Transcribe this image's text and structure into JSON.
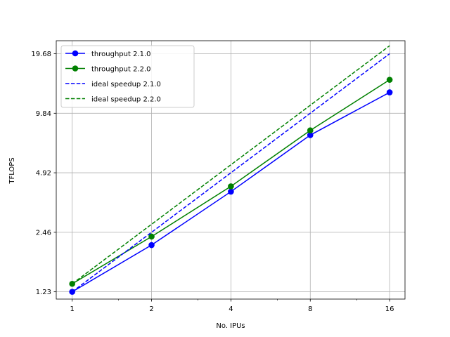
{
  "chart_data": {
    "type": "line",
    "xlabel": "No. IPUs",
    "ylabel": "TFLOPS",
    "x_scale": "log2",
    "y_scale": "log",
    "x": [
      1,
      2,
      4,
      8,
      16
    ],
    "x_ticks": [
      "1",
      "2",
      "4",
      "8",
      "16"
    ],
    "y_ticks": [
      1.23,
      2.46,
      4.92,
      9.84,
      19.68
    ],
    "y_tick_labels": [
      "1.23",
      "2.46",
      "4.92",
      "9.84",
      "19.68"
    ],
    "xlim": [
      0.87,
      18.3
    ],
    "ylim": [
      1.13,
      22.9
    ],
    "grid": true,
    "legend_position": "upper-left",
    "series": [
      {
        "name": "throughput 2.1.0",
        "style": "solid",
        "marker": "o",
        "color": "#0000ff",
        "values": [
          1.23,
          2.12,
          3.95,
          7.63,
          12.55
        ]
      },
      {
        "name": "throughput 2.2.0",
        "style": "solid",
        "marker": "o",
        "color": "#008000",
        "values": [
          1.35,
          2.34,
          4.2,
          8.06,
          14.53
        ]
      },
      {
        "name": "ideal speedup 2.1.0",
        "style": "dashed",
        "marker": "",
        "color": "#0000ff",
        "values": [
          1.23,
          2.46,
          4.92,
          9.84,
          19.68
        ]
      },
      {
        "name": "ideal speedup 2.2.0",
        "style": "dashed",
        "marker": "",
        "color": "#008000",
        "values": [
          1.35,
          2.7,
          5.4,
          10.8,
          21.6
        ]
      }
    ]
  }
}
